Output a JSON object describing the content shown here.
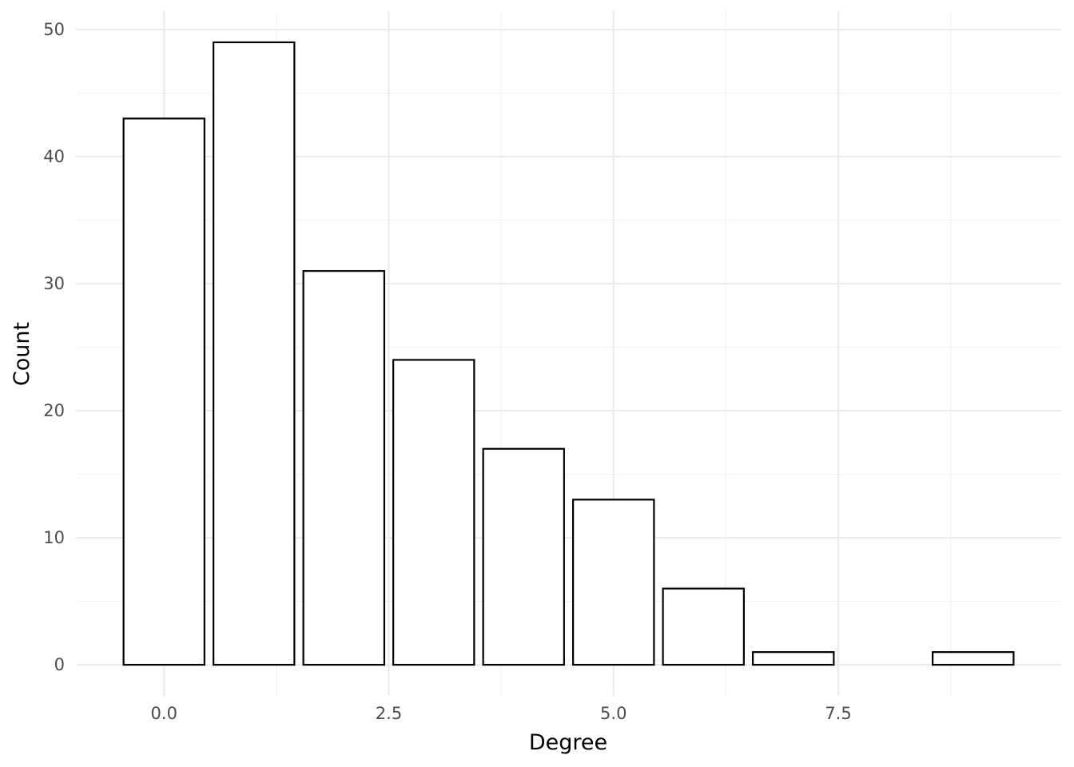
{
  "chart_data": {
    "type": "bar",
    "x": [
      0,
      1,
      2,
      3,
      4,
      5,
      6,
      7,
      9
    ],
    "values": [
      43,
      49,
      31,
      24,
      17,
      13,
      6,
      1,
      1
    ],
    "xlabel": "Degree",
    "ylabel": "Count",
    "xlim": [
      -0.98,
      9.98
    ],
    "ylim": [
      -2.45,
      51.45
    ],
    "x_ticks": [
      0,
      2.5,
      5,
      7.5
    ],
    "x_tick_labels": [
      "0.0",
      "2.5",
      "5.0",
      "7.5"
    ],
    "y_ticks": [
      0,
      10,
      20,
      30,
      40,
      50
    ],
    "y_tick_labels": [
      "0",
      "10",
      "20",
      "30",
      "40",
      "50"
    ],
    "grid": true,
    "bar_fill": "#ffffff",
    "bar_outline": "#000000",
    "legend": "none"
  }
}
